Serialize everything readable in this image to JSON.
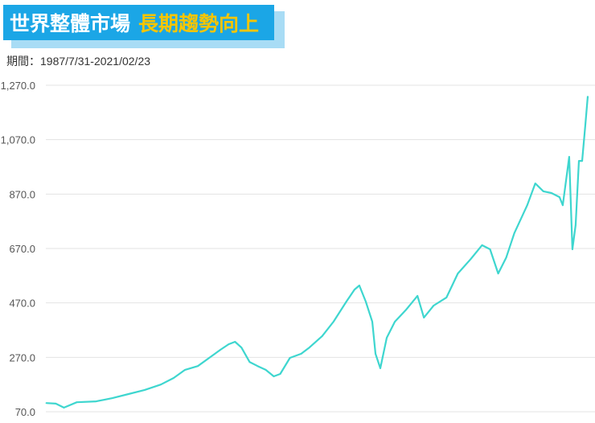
{
  "header": {
    "title_white": "世界整體市場",
    "title_yellow": "長期趨勢向上",
    "period": "期間：1987/7/31-2021/02/23"
  },
  "chart_data": {
    "type": "line",
    "title": "世界整體市場 長期趨勢向上",
    "subtitle": "期間：1987/7/31-2021/02/23",
    "xlabel": "",
    "ylabel": "",
    "xlim": [
      1987.58,
      2021.15
    ],
    "ylim": [
      70,
      1270
    ],
    "yticks": [
      70,
      270,
      470,
      670,
      870,
      1070,
      1270
    ],
    "ytick_labels": [
      "70.0",
      "270.0",
      "470.0",
      "670.0",
      "870.0",
      "1,070.0",
      "1,270.0"
    ],
    "grid": true,
    "line_color": "#3ed6cf",
    "series": [
      {
        "x": [
          1987.6,
          1988.2,
          1988.7,
          1989.5,
          1990.7,
          1991.7,
          1992.7,
          1993.7,
          1994.7,
          1995.5,
          1996.2,
          1997.0,
          1997.7,
          1998.4,
          1998.9,
          1999.3,
          1999.7,
          2000.2,
          2000.7,
          2001.2,
          2001.7,
          2002.1,
          2002.7,
          2003.4,
          2003.9,
          2004.7,
          2005.4,
          2006.2,
          2006.7,
          2007.0,
          2007.4,
          2007.8,
          2008.0,
          2008.3,
          2008.7,
          2009.2,
          2009.9,
          2010.6,
          2011.0,
          2011.6,
          2012.4,
          2013.1,
          2013.9,
          2014.6,
          2015.1,
          2015.6,
          2016.1,
          2016.6,
          2017.4,
          2017.9,
          2018.4,
          2018.9,
          2019.4,
          2019.6,
          2019.9,
          2020.0,
          2020.2,
          2020.4,
          2020.6,
          2020.8,
          2021.0,
          2021.15
        ],
        "y": [
          102,
          100,
          85,
          105,
          108,
          120,
          135,
          150,
          170,
          194,
          224,
          238,
          268,
          298,
          318,
          327,
          306,
          253,
          238,
          224,
          200,
          209,
          268,
          283,
          306,
          348,
          401,
          475,
          519,
          534,
          475,
          401,
          283,
          230,
          342,
          401,
          445,
          496,
          416,
          460,
          490,
          578,
          631,
          682,
          667,
          578,
          637,
          726,
          829,
          909,
          880,
          874,
          859,
          829,
          962,
          1007,
          667,
          756,
          992,
          992,
          1125,
          1229
        ]
      }
    ]
  }
}
